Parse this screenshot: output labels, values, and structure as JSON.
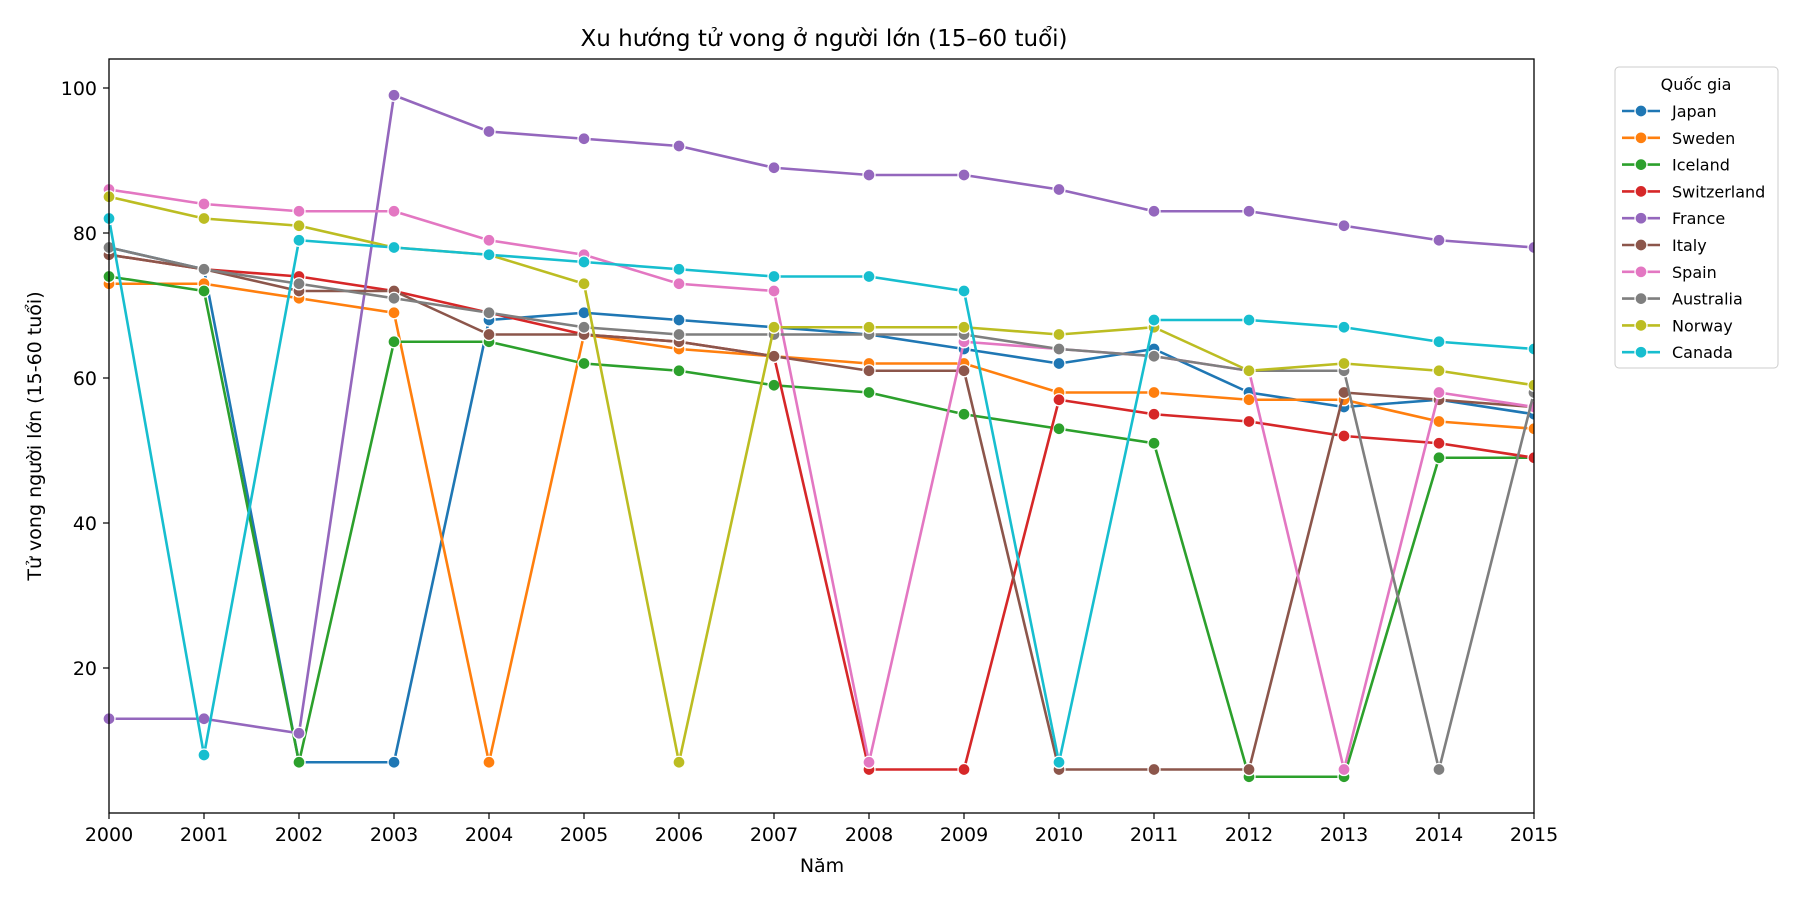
{
  "chart_data": {
    "type": "line",
    "title": "Xu hướng tử vong ở người lớn (15–60 tuổi)",
    "xlabel": "Năm",
    "ylabel": "Tử vong người lớn (15-60 tuổi)",
    "xlim": [
      2000,
      2015
    ],
    "ylim": [
      0,
      104
    ],
    "x_ticks": [
      2000,
      2001,
      2002,
      2003,
      2004,
      2005,
      2006,
      2007,
      2008,
      2009,
      2010,
      2011,
      2012,
      2013,
      2014,
      2015
    ],
    "y_ticks": [
      20,
      40,
      60,
      80,
      100
    ],
    "grid": false,
    "legend": {
      "title": "Quốc gia",
      "placement": "outside-top-right"
    },
    "x": [
      2000,
      2001,
      2002,
      2003,
      2004,
      2005,
      2006,
      2007,
      2008,
      2009,
      2010,
      2011,
      2012,
      2013,
      2014,
      2015
    ],
    "series": [
      {
        "name": "Japan",
        "color": "#1f77b4",
        "values": [
          78,
          75,
          7,
          7,
          68,
          69,
          68,
          67,
          66,
          64,
          62,
          64,
          58,
          56,
          57,
          55
        ]
      },
      {
        "name": "Sweden",
        "color": "#ff7f0e",
        "values": [
          73,
          73,
          71,
          69,
          7,
          66,
          64,
          63,
          62,
          62,
          58,
          58,
          57,
          57,
          54,
          53
        ]
      },
      {
        "name": "Iceland",
        "color": "#2ca02c",
        "values": [
          74,
          72,
          7,
          65,
          65,
          62,
          61,
          59,
          58,
          55,
          53,
          51,
          5,
          5,
          49,
          49
        ]
      },
      {
        "name": "Switzerland",
        "color": "#d62728",
        "values": [
          77,
          75,
          74,
          72,
          69,
          66,
          65,
          63,
          6,
          6,
          57,
          55,
          54,
          52,
          51,
          49
        ]
      },
      {
        "name": "France",
        "color": "#9467bd",
        "values": [
          13,
          13,
          11,
          99,
          94,
          93,
          92,
          89,
          88,
          88,
          86,
          83,
          83,
          81,
          79,
          78
        ]
      },
      {
        "name": "Italy",
        "color": "#8c564b",
        "values": [
          77,
          75,
          72,
          72,
          66,
          66,
          65,
          63,
          61,
          61,
          6,
          6,
          6,
          58,
          57,
          56
        ]
      },
      {
        "name": "Spain",
        "color": "#e377c2",
        "values": [
          86,
          84,
          83,
          83,
          79,
          77,
          73,
          72,
          7,
          65,
          64,
          63,
          61,
          6,
          58,
          56
        ]
      },
      {
        "name": "Australia",
        "color": "#7f7f7f",
        "values": [
          78,
          75,
          73,
          71,
          69,
          67,
          66,
          66,
          66,
          66,
          64,
          63,
          61,
          61,
          6,
          58
        ]
      },
      {
        "name": "Norway",
        "color": "#bcbd22",
        "values": [
          85,
          82,
          81,
          78,
          77,
          73,
          7,
          67,
          67,
          67,
          66,
          67,
          61,
          62,
          61,
          59
        ]
      },
      {
        "name": "Canada",
        "color": "#17becf",
        "values": [
          82,
          8,
          79,
          78,
          77,
          76,
          75,
          74,
          74,
          72,
          7,
          68,
          68,
          67,
          65,
          64
        ]
      }
    ]
  }
}
